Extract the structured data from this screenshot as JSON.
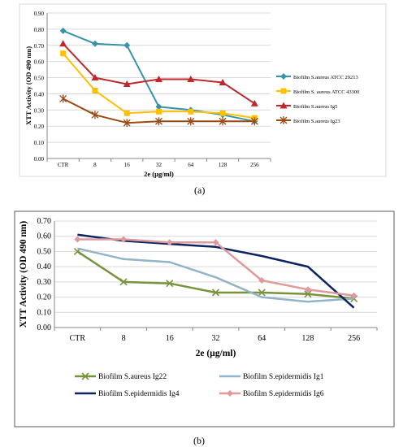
{
  "panels": [
    {
      "label": "(a)",
      "chart_data": {
        "type": "line",
        "categories": [
          "CTR",
          "8",
          "16",
          "32",
          "64",
          "128",
          "256"
        ],
        "xlabel": "2e (µg/ml)",
        "ylabel": "XTT Activity (OD 490 nm)",
        "ylim": [
          0,
          0.9
        ],
        "yticks": [
          "0.00",
          "0.10",
          "0.20",
          "0.30",
          "0.40",
          "0.50",
          "0.60",
          "0.70",
          "0.80",
          "0.90"
        ],
        "grid": true,
        "legend": "right",
        "series": [
          {
            "name": "Biofilm S.aureus ATCC 29213",
            "color": "#3793a8",
            "marker": "diamond",
            "values": [
              0.79,
              0.71,
              0.7,
              0.32,
              0.3,
              0.27,
              0.23
            ]
          },
          {
            "name": "Biofilm S. aureus ATCC 43300",
            "color": "#ffc000",
            "marker": "square",
            "values": [
              0.65,
              0.42,
              0.28,
              0.29,
              0.29,
              0.28,
              0.25
            ]
          },
          {
            "name": "Biofilm S.aureus Ig5",
            "color": "#c0292b",
            "marker": "triangle",
            "values": [
              0.71,
              0.5,
              0.46,
              0.49,
              0.49,
              0.47,
              0.34
            ]
          },
          {
            "name": "Biofilm S.aureus Ig23",
            "color": "#9c4a12",
            "marker": "star",
            "values": [
              0.37,
              0.27,
              0.22,
              0.23,
              0.23,
              0.23,
              0.23
            ]
          }
        ]
      }
    },
    {
      "label": "(b)",
      "chart_data": {
        "type": "line",
        "categories": [
          "CTR",
          "8",
          "16",
          "32",
          "64",
          "128",
          "256"
        ],
        "xlabel": "2e (µg/ml)",
        "ylabel": "XTT Activity (OD 490 nm)",
        "ylim": [
          0,
          0.7
        ],
        "yticks": [
          "0.00",
          "0.10",
          "0.20",
          "0.30",
          "0.40",
          "0.50",
          "0.60",
          "0.70"
        ],
        "grid": true,
        "legend": "bottom",
        "series": [
          {
            "name": "Biofilm S.aureus Ig22",
            "color": "#77933c",
            "marker": "x",
            "values": [
              0.5,
              0.3,
              0.29,
              0.23,
              0.23,
              0.22,
              0.19
            ]
          },
          {
            "name": "Biofilm S.epidermidis Ig1",
            "color": "#93b3c8",
            "marker": "none",
            "values": [
              0.52,
              0.45,
              0.43,
              0.33,
              0.2,
              0.17,
              0.19
            ]
          },
          {
            "name": "Biofilm S.epidermidis Ig4",
            "color": "#0e2460",
            "marker": "none",
            "values": [
              0.61,
              0.57,
              0.55,
              0.53,
              0.47,
              0.4,
              0.13
            ]
          },
          {
            "name": "Biofilm S.epidermidis Ig6",
            "color": "#e09a9c",
            "marker": "diamond",
            "values": [
              0.58,
              0.58,
              0.56,
              0.56,
              0.31,
              0.25,
              0.21
            ]
          }
        ]
      }
    }
  ]
}
